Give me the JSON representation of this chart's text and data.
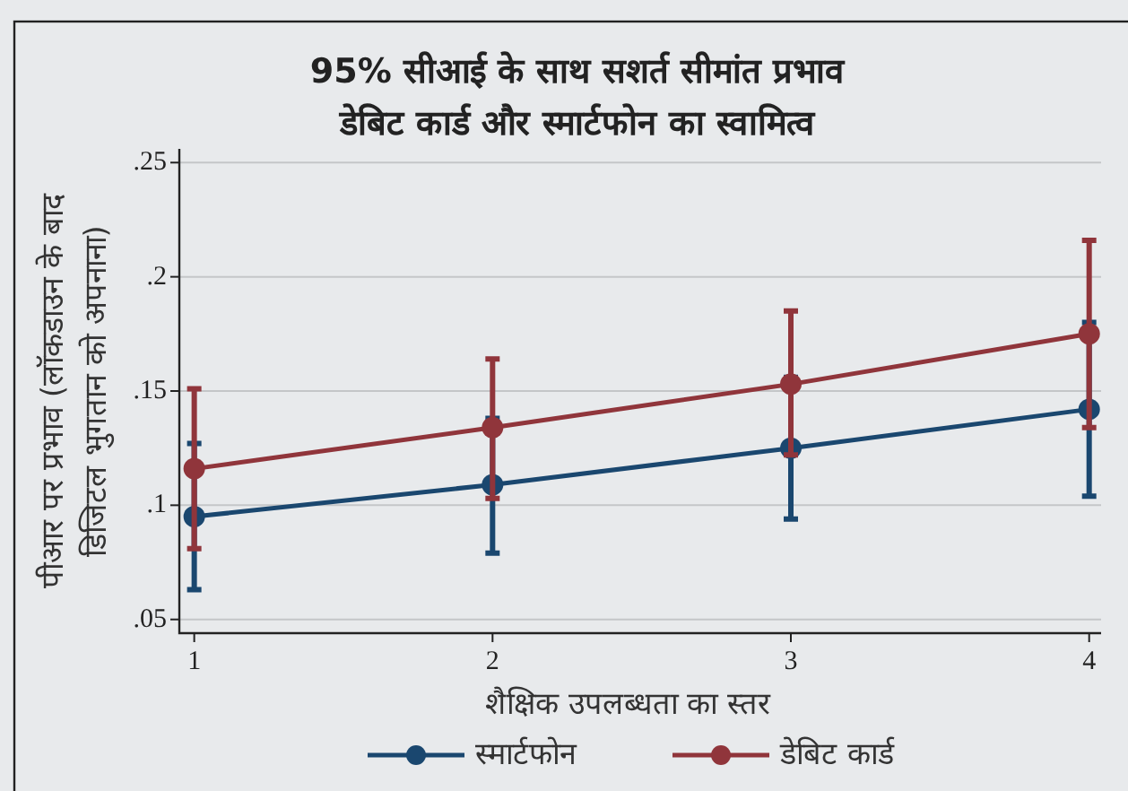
{
  "chart_data": {
    "type": "line",
    "title": "95% सीआई के साथ सशर्त सीमांत प्रभाव",
    "subtitle": "डेबिट कार्ड और स्मार्टफोन का स्वामित्व",
    "xlabel": "शैक्षिक उपलब्धता का स्तर",
    "ylabel": "पीआर पर प्रभाव (लॉकडाउन के बाद\nडिजिटल भुगतान को अपनाना)",
    "x": [
      1,
      2,
      3,
      4
    ],
    "xlim": [
      0.95,
      4.04
    ],
    "xticks": [
      1,
      2,
      3,
      4
    ],
    "ylim": [
      0.044,
      0.256
    ],
    "yticks": [
      {
        "value": 0.05,
        "label": ".05"
      },
      {
        "value": 0.1,
        "label": ".1"
      },
      {
        "value": 0.15,
        "label": ".15"
      },
      {
        "value": 0.2,
        "label": ".2"
      },
      {
        "value": 0.25,
        "label": ".25"
      }
    ],
    "series": [
      {
        "name": "स्मार्टफोन",
        "color": "#1a476f",
        "values": [
          0.095,
          0.109,
          0.125,
          0.142
        ],
        "errors": [
          [
            0.063,
            0.127
          ],
          [
            0.079,
            0.138
          ],
          [
            0.094,
            0.156
          ],
          [
            0.104,
            0.18
          ]
        ]
      },
      {
        "name": "डेबिट कार्ड",
        "color": "#90353b",
        "values": [
          0.116,
          0.134,
          0.153,
          0.175
        ],
        "errors": [
          [
            0.081,
            0.151
          ],
          [
            0.103,
            0.164
          ],
          [
            0.122,
            0.185
          ],
          [
            0.134,
            0.216
          ]
        ]
      }
    ],
    "grid": "y",
    "legend": "bottom",
    "marker": "circle",
    "line_style": "solid"
  }
}
